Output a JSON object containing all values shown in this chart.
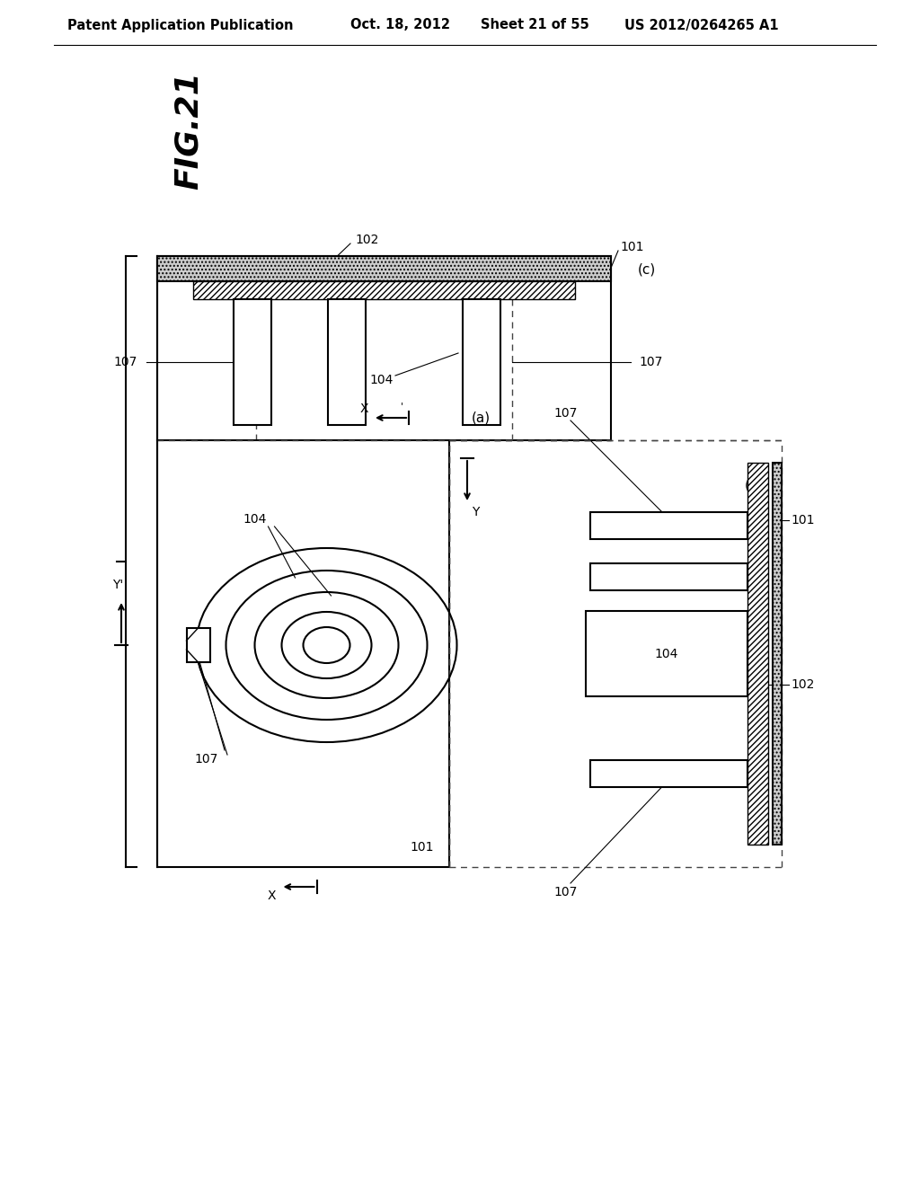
{
  "bg_color": "#ffffff",
  "header_text": "Patent Application Publication",
  "header_date": "Oct. 18, 2012",
  "header_sheet": "Sheet 21 of 55",
  "header_patent": "US 2012/0264265 A1",
  "fig_label": "FIG.21"
}
